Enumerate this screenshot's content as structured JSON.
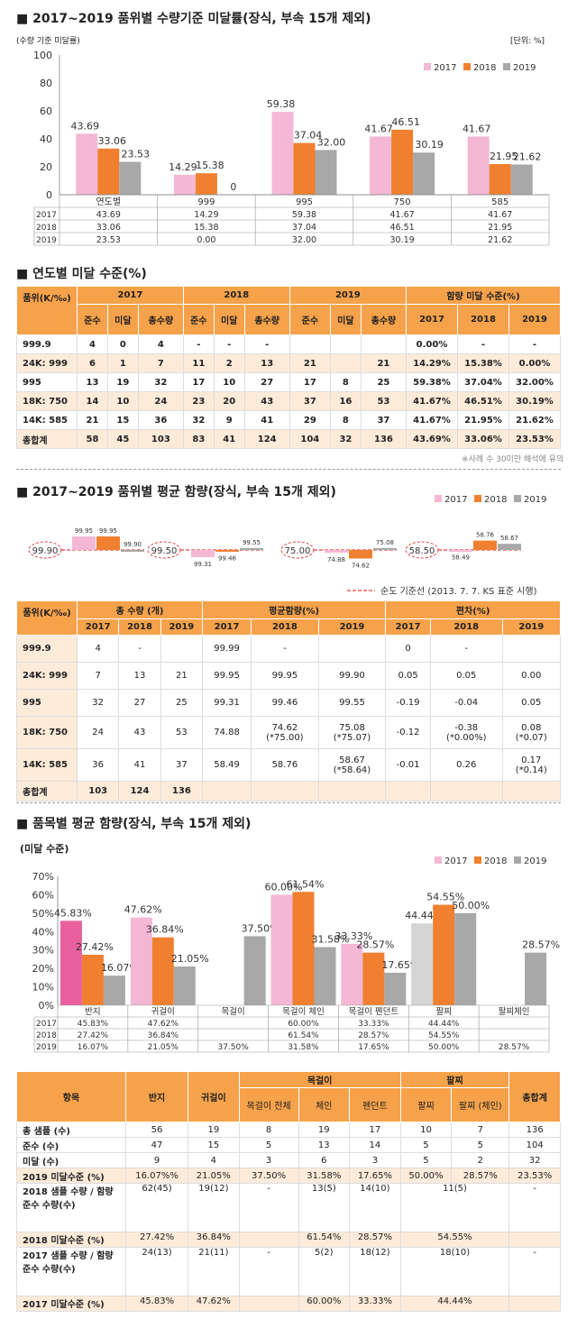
{
  "s1": {
    "title": "■ 2017~2019 품위별 수량기준 미달률(장식, 부속 15개 제외)",
    "left_note": "(수량 기준 미달률)",
    "unit": "[단위: %]"
  },
  "s2": {
    "title": "■ 연도별 미달 수준(%)",
    "note": "※사례 수 30미만 해석에 유의"
  },
  "s3": {
    "title": "■ 2017~2019 품위별 평균 함량(장식, 부속 15개 제외)",
    "legend_line": "순도 기준선 (2013. 7. 7. KS 표준 시행)"
  },
  "s4": {
    "title": "■ 품목별 평균 함량(장식, 부속 15개 제외)",
    "sub": "(미달 수준)"
  },
  "colors": {
    "c2017": "#f4b8d4",
    "c2018": "#f08030",
    "c2019": "#a8a8a8",
    "c2017dark": "#e8609e",
    "c2017gray": "#d4d4d4",
    "header": "#f6a24b",
    "alt": "#fdebd9",
    "ref": "#e84040"
  },
  "chart_data": [
    {
      "type": "bar",
      "categories": [
        "연도별",
        "999",
        "995",
        "750",
        "585"
      ],
      "series": [
        {
          "name": "2017",
          "values": [
            43.69,
            14.29,
            59.38,
            41.67,
            41.67
          ],
          "labels": [
            "43.69",
            "14.29",
            "59.38",
            "41.67",
            "41.67"
          ]
        },
        {
          "name": "2018",
          "values": [
            33.06,
            15.38,
            37.04,
            46.51,
            21.95
          ],
          "labels": [
            "33.06",
            "15.38",
            "37.04",
            "46.51",
            "21.95"
          ]
        },
        {
          "name": "2019",
          "values": [
            23.53,
            0,
            32.0,
            30.19,
            21.62
          ],
          "labels": [
            "23.53",
            "0",
            "32.00",
            "30.19",
            "21.62"
          ]
        }
      ],
      "table_rows": [
        {
          "year": "2017",
          "cells": [
            "43.69",
            "14.29",
            "59.38",
            "41.67",
            "41.67"
          ]
        },
        {
          "year": "2018",
          "cells": [
            "33.06",
            "15.38",
            "37.04",
            "46.51",
            "21.95"
          ]
        },
        {
          "year": "2019",
          "cells": [
            "23.53",
            "0.00",
            "32.00",
            "30.19",
            "21.62"
          ]
        }
      ],
      "yticks": [
        "0",
        "20",
        "40",
        "60",
        "80",
        "100"
      ],
      "ylim": [
        0,
        100
      ],
      "legend": [
        "2017",
        "2018",
        "2019"
      ]
    },
    {
      "type": "bar",
      "groups": [
        {
          "baseline_label": "99.90",
          "baseline": 99.9,
          "values": [
            99.95,
            99.95,
            99.9
          ],
          "labels": [
            "99.95",
            "99.95",
            "99.90"
          ]
        },
        {
          "baseline_label": "99.50",
          "baseline": 99.5,
          "values": [
            99.31,
            99.46,
            99.55
          ],
          "labels": [
            "99.31",
            "99.46",
            "99.55"
          ]
        },
        {
          "baseline_label": "75.00",
          "baseline": 75.0,
          "values": [
            74.88,
            74.62,
            75.08
          ],
          "labels": [
            "74.88",
            "74.62",
            "75.08"
          ]
        },
        {
          "baseline_label": "58.50",
          "baseline": 58.5,
          "values": [
            58.49,
            58.76,
            58.67
          ],
          "labels": [
            "58.49",
            "58.76",
            "58.67"
          ]
        }
      ],
      "legend": [
        "2017",
        "2018",
        "2019"
      ]
    },
    {
      "type": "bar",
      "categories": [
        "반지",
        "귀걸이",
        "목걸이",
        "목걸이 체인",
        "목걸이 펜던트",
        "팔찌",
        "팔찌체인"
      ],
      "series": [
        {
          "name": "2017",
          "values": [
            45.83,
            47.62,
            null,
            60.0,
            33.33,
            44.44,
            null
          ],
          "labels": [
            "45.83%",
            "47.62%",
            "",
            "60.00%",
            "33.33%",
            "44.44%",
            ""
          ]
        },
        {
          "name": "2018",
          "values": [
            27.42,
            36.84,
            null,
            61.54,
            28.57,
            54.55,
            null
          ],
          "labels": [
            "27.42%",
            "36.84%",
            "",
            "61.54%",
            "28.57%",
            "54.55%",
            ""
          ]
        },
        {
          "name": "2019",
          "values": [
            16.07,
            21.05,
            37.5,
            31.58,
            17.65,
            50.0,
            28.57
          ],
          "labels": [
            "16.07%",
            "21.05%",
            "37.50%",
            "31.58%",
            "17.65%",
            "50.00%",
            "28.57%"
          ]
        }
      ],
      "table_rows": [
        {
          "year": "2017",
          "cells": [
            "45.83%",
            "47.62%",
            "",
            "60.00%",
            "33.33%",
            "44.44%",
            ""
          ]
        },
        {
          "year": "2018",
          "cells": [
            "27.42%",
            "36.84%",
            "",
            "61.54%",
            "28.57%",
            "54.55%",
            ""
          ]
        },
        {
          "year": "2019",
          "cells": [
            "16.07%",
            "21.05%",
            "37.50%",
            "31.58%",
            "17.65%",
            "50.00%",
            "28.57%"
          ]
        }
      ],
      "yticks": [
        "0%",
        "10%",
        "20%",
        "30%",
        "40%",
        "50%",
        "60%",
        "70%"
      ],
      "ylim": [
        0,
        70
      ],
      "legend": [
        "2017",
        "2018",
        "2019"
      ]
    }
  ],
  "table1": {
    "h_grade": "품위(K/‰)",
    "years": [
      "2017",
      "2018",
      "2019"
    ],
    "h_rate": "함량 미달 수준(%)",
    "sub": [
      "준수",
      "미달",
      "총수량",
      "준수",
      "미달",
      "총수량",
      "준수",
      "미달",
      "총수량",
      "2017",
      "2018",
      "2019"
    ],
    "rows": [
      [
        "999.9",
        "4",
        "0",
        "4",
        "-",
        "-",
        "-",
        "",
        "",
        "",
        "0.00%",
        "-",
        "-"
      ],
      [
        "24K: 999",
        "6",
        "1",
        "7",
        "11",
        "2",
        "13",
        "21",
        "",
        "21",
        "14.29%",
        "15.38%",
        "0.00%"
      ],
      [
        "995",
        "13",
        "19",
        "32",
        "17",
        "10",
        "27",
        "17",
        "8",
        "25",
        "59.38%",
        "37.04%",
        "32.00%"
      ],
      [
        "18K: 750",
        "14",
        "10",
        "24",
        "23",
        "20",
        "43",
        "37",
        "16",
        "53",
        "41.67%",
        "46.51%",
        "30.19%"
      ],
      [
        "14K: 585",
        "21",
        "15",
        "36",
        "32",
        "9",
        "41",
        "29",
        "8",
        "37",
        "41.67%",
        "21.95%",
        "21.62%"
      ],
      [
        "총합계",
        "58",
        "45",
        "103",
        "83",
        "41",
        "124",
        "104",
        "32",
        "136",
        "43.69%",
        "33.06%",
        "23.53%"
      ]
    ]
  },
  "table2": {
    "h_grade": "품위(K/‰)",
    "h_qty": "총 수량 (개)",
    "h_avg": "평균함량(%)",
    "h_dev": "편차(%)",
    "years": [
      "2017",
      "2018",
      "2019",
      "2017",
      "2018",
      "2019",
      "2017",
      "2018",
      "2019"
    ],
    "rows": [
      [
        "999.9",
        "4",
        "-",
        "",
        "99.99",
        "-",
        "",
        "0",
        "-",
        ""
      ],
      [
        "24K: 999",
        "7",
        "13",
        "21",
        "99.95",
        "99.95",
        "99.90",
        "0.05",
        "0.05",
        "0.00"
      ],
      [
        "995",
        "32",
        "27",
        "25",
        "99.31",
        "99.46",
        "99.55",
        "-0.19",
        "-0.04",
        "0.05"
      ],
      [
        "18K: 750",
        "24",
        "43",
        "53",
        "74.88",
        "74.62",
        "75.08",
        "-0.12",
        "-0.38",
        "0.08"
      ],
      [
        "14K: 585",
        "36",
        "41",
        "37",
        "58.49",
        "58.76",
        "58.67",
        "-0.01",
        "0.26",
        "0.17"
      ],
      [
        "총합계",
        "103",
        "124",
        "136",
        "",
        "",
        "",
        "",
        "",
        ""
      ]
    ],
    "sub_notes": {
      "r3": [
        "(*75.00)",
        "(*75.07)",
        "(*0.00%)",
        "(*0.07)"
      ],
      "r4": [
        "(*58.64)",
        "(*0.14)"
      ]
    }
  },
  "table3": {
    "h_item": "항목",
    "h_ring": "반지",
    "h_ear": "귀걸이",
    "h_neck": "목걸이",
    "h_neck_all": "목걸이 전체",
    "h_chain": "체인",
    "h_pend": "펜던트",
    "h_brace": "팔찌",
    "h_brace_sub": "팔찌",
    "h_brace_chain": "팔찌 (체인)",
    "h_total": "총합계",
    "rows": [
      [
        "총 샘플 (수)",
        "56",
        "19",
        "8",
        "19",
        "17",
        "10",
        "7",
        "136"
      ],
      [
        "준수 (수)",
        "47",
        "15",
        "5",
        "13",
        "14",
        "5",
        "5",
        "104"
      ],
      [
        "미달 (수)",
        "9",
        "4",
        "3",
        "6",
        "3",
        "5",
        "2",
        "32"
      ],
      [
        "2019 미달수준 (%)",
        "16.07%%",
        "21.05%",
        "37.50%",
        "31.58%",
        "17.65%",
        "50.00%",
        "28.57%",
        "23.53%"
      ]
    ],
    "r2018_label": "2018 샘플 수량 / 함량 준수 수량(수)",
    "r2018": [
      "62(45)",
      "19(12)",
      "-",
      "13(5)",
      "14(10)",
      "11(5)",
      "-"
    ],
    "r2018_rate_label": "2018 미달수준 (%)",
    "r2018_rate": [
      "27.42%",
      "36.84%",
      "",
      "61.54%",
      "28.57%",
      "54.55%",
      ""
    ],
    "r2017_label": "2017 샘플 수량 / 함량 준수 수량(수)",
    "r2017": [
      "24(13)",
      "21(11)",
      "-",
      "5(2)",
      "18(12)",
      "18(10)",
      "-"
    ],
    "r2017_rate_label": "2017 미달수준 (%)",
    "r2017_rate": [
      "45.83%",
      "47.62%",
      "",
      "60.00%",
      "33.33%",
      "44.44%",
      ""
    ]
  }
}
